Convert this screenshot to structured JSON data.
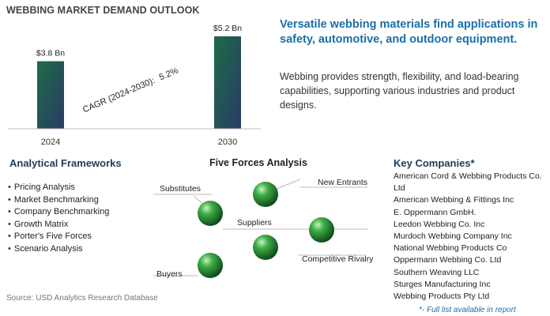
{
  "chart_data": {
    "type": "bar",
    "title": "WEBBING MARKET DEMAND OUTLOOK",
    "categories": [
      "2024",
      "2030"
    ],
    "values": [
      3.8,
      5.2
    ],
    "value_labels": [
      "$3.8 Bn",
      "$5.2 Bn"
    ],
    "annotation": {
      "label": "CAGR (2024-2030):",
      "value": "5.2%"
    },
    "colors": [
      "#1d6b48",
      "#2a3b66"
    ],
    "grid": false,
    "legend": "none"
  },
  "headline": "Versatile webbing materials find applications in safety, automotive, and outdoor equipment.",
  "description": "Webbing provides strength, flexibility, and load-bearing capabilities, supporting various industries and product designs.",
  "frameworks": {
    "title": "Analytical Frameworks",
    "items": [
      "Pricing Analysis",
      "Market Benchmarking",
      "Company Benchmarking",
      "Growth Matrix",
      "Porter's Five Forces",
      "Scenario Analysis"
    ]
  },
  "five_forces": {
    "title": "Five Forces Analysis",
    "labels": {
      "substitutes": "Substitutes",
      "new_entrants": "New Entrants",
      "suppliers": "Suppliers",
      "competitive_rivalry": "Competitive Rivalry",
      "buyers": "Buyers"
    },
    "sphere_color": "#2e9a3e"
  },
  "companies": {
    "title": "Key Companies*",
    "items": [
      "American Cord & Webbing Products Co. Ltd",
      "American Webbing & Fittings Inc",
      "E. Oppermann GmbH.",
      "Leedon Webbing Co. Inc",
      "Murdoch Webbing Company Inc",
      "National Webbing Products Co",
      "Oppermann Webbing Co. Ltd",
      "Southern Weaving LLC",
      "Sturges Manufacturing Inc",
      "Webbing Products Pty Ltd"
    ],
    "note": "*- Full list available in report"
  },
  "source": "Source: USD Analytics Research Database"
}
